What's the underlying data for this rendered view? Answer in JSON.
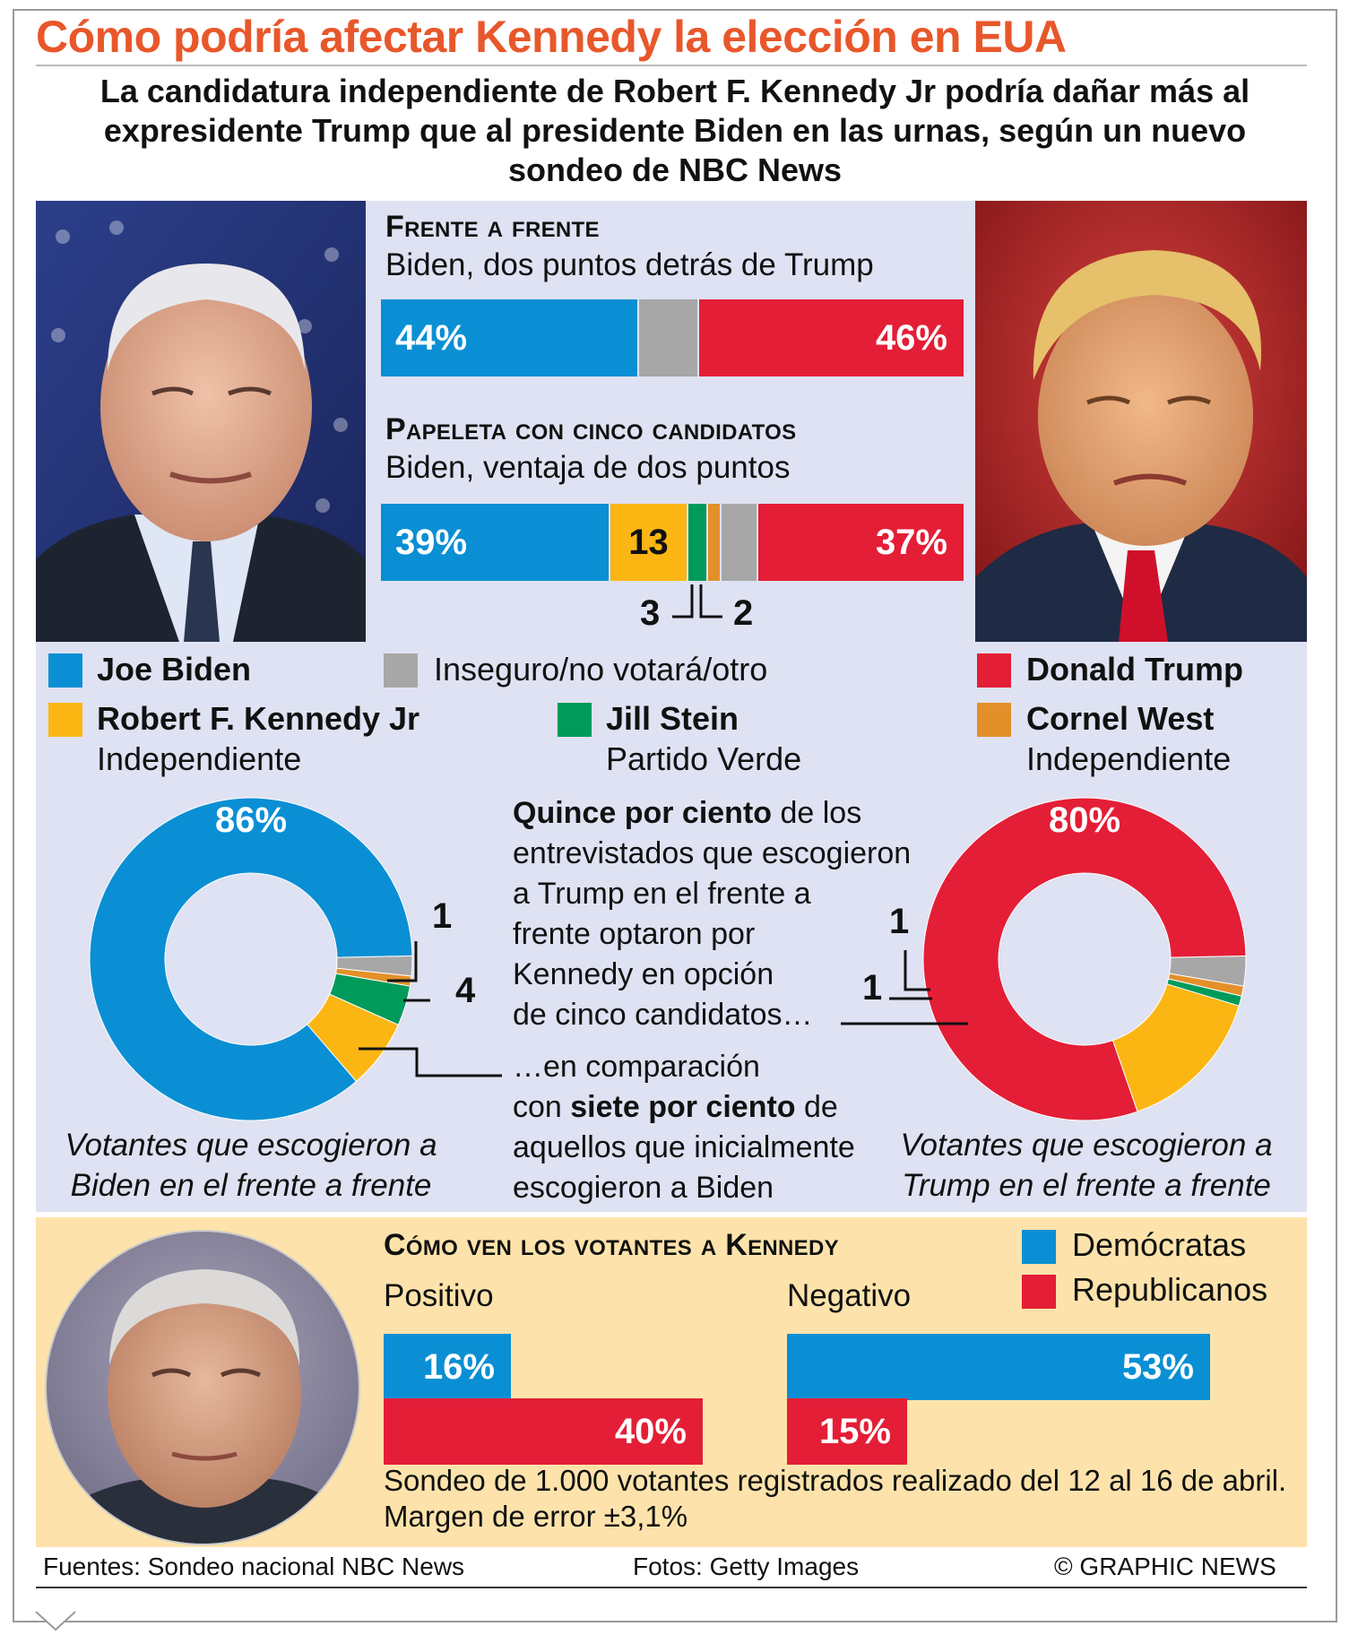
{
  "title": "Cómo podría afectar Kennedy la elección en EUA",
  "subtitle": "La candidatura independiente de Robert F. Kennedy Jr podría dañar más al expresidente Trump que al presidente Biden en las urnas, según un nuevo sondeo de NBC News",
  "colors": {
    "biden": "#0a8fd4",
    "trump": "#e41e36",
    "kennedy": "#fbb614",
    "stein": "#009a5a",
    "west": "#e3902a",
    "other": "#a7a7a7",
    "title": "#e8572a"
  },
  "head_to_head": {
    "heading": "Frente a frente",
    "subheading": "Biden, dos puntos detrás de Trump"
  },
  "five_way": {
    "heading": "Papeleta con cinco candidatos",
    "subheading": "Biden, ventaja de dos puntos"
  },
  "legend": {
    "biden": "Joe Biden",
    "other": "Inseguro/no votará/otro",
    "trump": "Donald Trump",
    "kennedy": "Robert F. Kennedy Jr",
    "kennedy_sub": "Independiente",
    "stein": "Jill Stein",
    "stein_sub": "Partido Verde",
    "west": "Cornel West",
    "west_sub": "Independiente"
  },
  "middle_note": {
    "l1_bold": "Quince por ciento",
    "l1_rest": " de los",
    "l2": "entrevistados que escogieron",
    "l3": "a Trump en el frente a",
    "l4": "frente optaron por",
    "l5": "Kennedy en opción",
    "l6": "de cinco candidatos…",
    "l7": "…en comparación",
    "l8_pre": "con ",
    "l8_bold": "siete por ciento",
    "l8_post": " de",
    "l9": "aquellos que inicialmente",
    "l10": "escogieron a Biden"
  },
  "captions": {
    "biden_l1": "Votantes que escogieron a",
    "biden_l2": "Biden en el frente a frente",
    "trump_l1": "Votantes que escogieron a",
    "trump_l2": "Trump en el frente a frente"
  },
  "kennedy_views": {
    "heading": "Cómo ven los votantes a Kennedy",
    "positive_label": "Positivo",
    "negative_label": "Negativo",
    "legend_dem": "Demócratas",
    "legend_rep": "Republicanos",
    "note": "Sondeo de 1.000 votantes registrados realizado del 12 al 16 de abril. Margen de error ±3,1%"
  },
  "footer": {
    "sources": "Fuentes: Sondeo nacional NBC News",
    "photos": "Fotos: Getty Images",
    "credit": "© GRAPHIC NEWS"
  },
  "chart_data": [
    {
      "type": "bar",
      "stacked": true,
      "title": "Frente a frente",
      "subtitle": "Biden, dos puntos detrás de Trump",
      "series": [
        {
          "name": "Joe Biden",
          "values": [
            44
          ],
          "label": "44%"
        },
        {
          "name": "Inseguro/no votará/otro",
          "values": [
            10
          ]
        },
        {
          "name": "Donald Trump",
          "values": [
            46
          ],
          "label": "46%"
        }
      ]
    },
    {
      "type": "bar",
      "stacked": true,
      "title": "Papeleta con cinco candidatos",
      "subtitle": "Biden, ventaja de dos puntos",
      "series": [
        {
          "name": "Joe Biden",
          "values": [
            39
          ],
          "label": "39%"
        },
        {
          "name": "Robert F. Kennedy Jr",
          "values": [
            13
          ],
          "label": "13"
        },
        {
          "name": "Jill Stein",
          "values": [
            3
          ],
          "label": "3"
        },
        {
          "name": "Cornel West",
          "values": [
            2
          ],
          "label": "2"
        },
        {
          "name": "Inseguro/no votará/otro",
          "values": [
            6
          ]
        },
        {
          "name": "Donald Trump",
          "values": [
            37
          ],
          "label": "37%"
        }
      ]
    },
    {
      "type": "pie",
      "donut": true,
      "caption": "Votantes que escogieron a Biden en el frente a frente",
      "slices": [
        {
          "name": "Joe Biden",
          "value": 86,
          "label": "86%"
        },
        {
          "name": "Robert F. Kennedy Jr",
          "value": 7
        },
        {
          "name": "Jill Stein",
          "value": 4,
          "label": "4"
        },
        {
          "name": "Cornel West",
          "value": 1,
          "label": "1"
        },
        {
          "name": "Inseguro/no votará/otro",
          "value": 2
        }
      ]
    },
    {
      "type": "pie",
      "donut": true,
      "caption": "Votantes que escogieron a Trump en el frente a frente",
      "slices": [
        {
          "name": "Donald Trump",
          "value": 80,
          "label": "80%"
        },
        {
          "name": "Robert F. Kennedy Jr",
          "value": 15
        },
        {
          "name": "Jill Stein",
          "value": 1,
          "label": "1"
        },
        {
          "name": "Cornel West",
          "value": 1,
          "label": "1"
        },
        {
          "name": "Inseguro/no votará/otro",
          "value": 3
        }
      ]
    },
    {
      "type": "bar",
      "orientation": "horizontal",
      "title": "Cómo ven los votantes a Kennedy",
      "categories": [
        "Positivo",
        "Negativo"
      ],
      "series": [
        {
          "name": "Demócratas",
          "values": [
            16,
            53
          ],
          "labels": [
            "16%",
            "53%"
          ]
        },
        {
          "name": "Republicanos",
          "values": [
            40,
            15
          ],
          "labels": [
            "40%",
            "15%"
          ]
        }
      ]
    }
  ]
}
